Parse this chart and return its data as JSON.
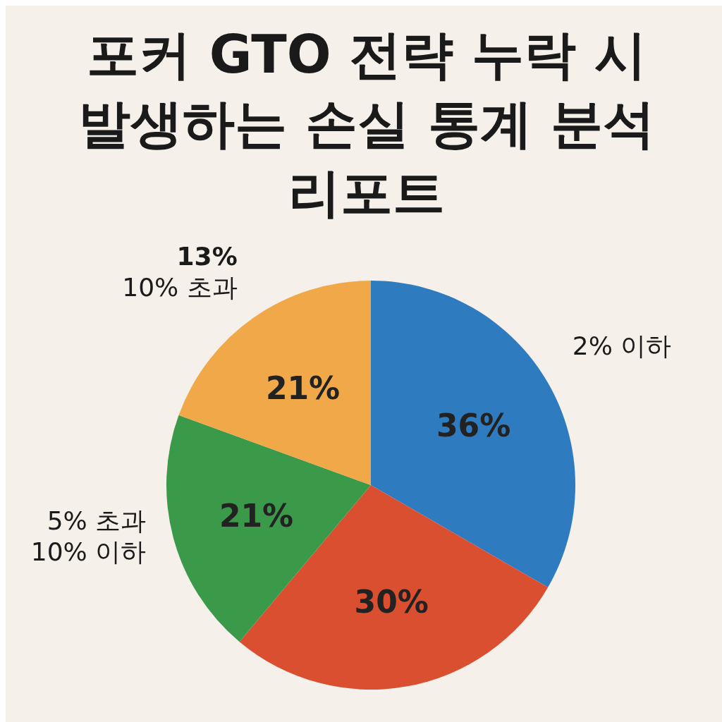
{
  "chart_data": {
    "type": "pie",
    "title": "포커 GTO 전략 누락 시 발생하는 손실 통계 분석 리포트",
    "categories": [
      "2% 이하",
      null,
      "5% 초과 10% 이하",
      "10% 초과"
    ],
    "values": [
      36,
      30,
      21,
      21
    ],
    "value_labels": [
      "36%",
      "30%",
      "21%",
      "21%"
    ],
    "colors": [
      "#2f7bbf",
      "#d94f30",
      "#3a9a4a",
      "#f0a848"
    ],
    "annotations": [
      "13%"
    ]
  }
}
